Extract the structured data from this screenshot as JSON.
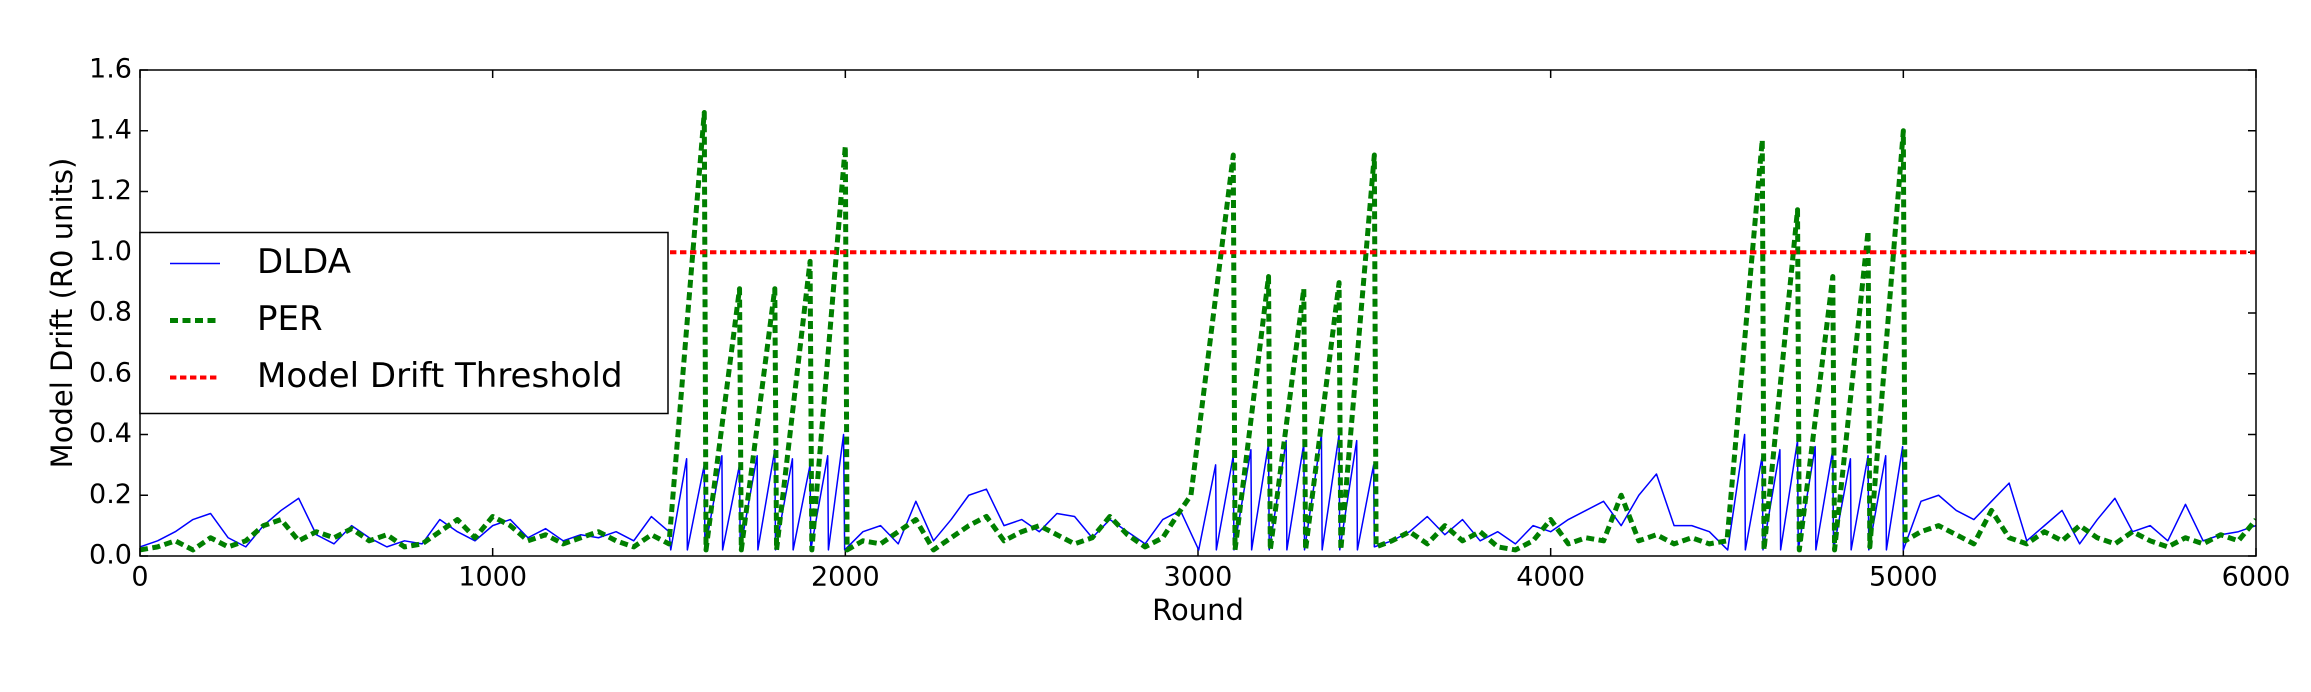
{
  "chart_data": {
    "type": "line",
    "xlabel": "Round",
    "ylabel": "Model Drift (R0 units)",
    "xlim": [
      0,
      6000
    ],
    "xticks": [
      0,
      1000,
      2000,
      3000,
      4000,
      5000,
      6000
    ],
    "ylim": [
      0,
      1.6
    ],
    "yticks": [
      {
        "value": 0,
        "label": "0.0"
      },
      0.2,
      0.4,
      0.6,
      0.8,
      {
        "value": 1,
        "label": "1.0"
      },
      1.2,
      1.4,
      1.6
    ],
    "grid": false,
    "legend": "center left",
    "series": [
      {
        "name": "DLDA",
        "color": "#0000ff",
        "dash": "solid",
        "width": 1.5,
        "x": [
          0,
          50,
          100,
          150,
          200,
          250,
          300,
          350,
          400,
          450,
          500,
          550,
          600,
          650,
          700,
          750,
          800,
          850,
          900,
          950,
          1000,
          1050,
          1100,
          1150,
          1200,
          1250,
          1300,
          1350,
          1400,
          1450,
          1500,
          1505,
          1550,
          1552,
          1600,
          1602,
          1650,
          1652,
          1700,
          1702,
          1750,
          1752,
          1800,
          1802,
          1850,
          1852,
          1900,
          1902,
          1950,
          1952,
          1995,
          1998,
          2050,
          2100,
          2150,
          2200,
          2250,
          2300,
          2350,
          2400,
          2450,
          2500,
          2550,
          2600,
          2650,
          2700,
          2750,
          2800,
          2850,
          2900,
          2950,
          3002,
          3050,
          3052,
          3100,
          3102,
          3150,
          3152,
          3200,
          3202,
          3250,
          3252,
          3300,
          3302,
          3350,
          3352,
          3400,
          3402,
          3450,
          3452,
          3498,
          3500,
          3550,
          3600,
          3650,
          3700,
          3750,
          3800,
          3850,
          3900,
          3950,
          4000,
          4050,
          4100,
          4150,
          4200,
          4250,
          4300,
          4350,
          4400,
          4450,
          4502,
          4550,
          4552,
          4600,
          4602,
          4650,
          4652,
          4700,
          4702,
          4750,
          4752,
          4800,
          4802,
          4850,
          4852,
          4900,
          4902,
          4950,
          4952,
          4998,
          5000,
          5050,
          5100,
          5150,
          5200,
          5250,
          5300,
          5350,
          5400,
          5450,
          5500,
          5550,
          5600,
          5650,
          5700,
          5750,
          5800,
          5850,
          5900,
          5950,
          6000
        ],
        "values": [
          0.03,
          0.05,
          0.08,
          0.12,
          0.14,
          0.06,
          0.03,
          0.1,
          0.15,
          0.19,
          0.07,
          0.04,
          0.1,
          0.06,
          0.03,
          0.05,
          0.04,
          0.12,
          0.08,
          0.05,
          0.1,
          0.12,
          0.06,
          0.09,
          0.05,
          0.07,
          0.06,
          0.08,
          0.05,
          0.13,
          0.08,
          0.02,
          0.32,
          0.02,
          0.3,
          0.02,
          0.33,
          0.02,
          0.3,
          0.02,
          0.33,
          0.02,
          0.35,
          0.02,
          0.32,
          0.02,
          0.3,
          0.02,
          0.33,
          0.02,
          0.4,
          0.02,
          0.08,
          0.1,
          0.04,
          0.18,
          0.05,
          0.12,
          0.2,
          0.22,
          0.1,
          0.12,
          0.08,
          0.14,
          0.13,
          0.06,
          0.12,
          0.08,
          0.04,
          0.12,
          0.15,
          0.02,
          0.3,
          0.02,
          0.33,
          0.02,
          0.35,
          0.02,
          0.37,
          0.02,
          0.38,
          0.02,
          0.37,
          0.02,
          0.4,
          0.02,
          0.4,
          0.02,
          0.38,
          0.02,
          0.3,
          0.03,
          0.05,
          0.08,
          0.13,
          0.07,
          0.12,
          0.05,
          0.08,
          0.04,
          0.1,
          0.08,
          0.12,
          0.15,
          0.18,
          0.1,
          0.2,
          0.27,
          0.1,
          0.1,
          0.08,
          0.02,
          0.4,
          0.02,
          0.33,
          0.02,
          0.35,
          0.02,
          0.38,
          0.02,
          0.36,
          0.02,
          0.35,
          0.02,
          0.32,
          0.02,
          0.33,
          0.02,
          0.33,
          0.02,
          0.36,
          0.02,
          0.18,
          0.2,
          0.15,
          0.12,
          0.18,
          0.24,
          0.05,
          0.1,
          0.15,
          0.04,
          0.12,
          0.19,
          0.08,
          0.1,
          0.05,
          0.17,
          0.05,
          0.07,
          0.08,
          0.1
        ]
      },
      {
        "name": "PER",
        "color": "#007f00",
        "dash": "dashed",
        "width": 5,
        "x": [
          0,
          50,
          100,
          150,
          200,
          250,
          300,
          350,
          400,
          450,
          500,
          550,
          600,
          650,
          700,
          750,
          800,
          850,
          900,
          950,
          1000,
          1050,
          1100,
          1150,
          1200,
          1250,
          1300,
          1350,
          1400,
          1450,
          1500,
          1600,
          1605,
          1700,
          1705,
          1800,
          1805,
          1900,
          1905,
          2000,
          2005,
          2050,
          2100,
          2150,
          2200,
          2250,
          2300,
          2350,
          2400,
          2450,
          2500,
          2550,
          2600,
          2650,
          2700,
          2750,
          2800,
          2850,
          2900,
          2950,
          2980,
          3100,
          3105,
          3200,
          3205,
          3300,
          3305,
          3400,
          3405,
          3500,
          3505,
          3550,
          3600,
          3650,
          3700,
          3750,
          3800,
          3850,
          3900,
          3950,
          4000,
          4050,
          4100,
          4150,
          4200,
          4250,
          4300,
          4350,
          4400,
          4450,
          4500,
          4600,
          4605,
          4700,
          4705,
          4800,
          4805,
          4900,
          4905,
          5000,
          5005,
          5050,
          5100,
          5150,
          5200,
          5250,
          5300,
          5350,
          5400,
          5450,
          5500,
          5550,
          5600,
          5650,
          5700,
          5750,
          5800,
          5850,
          5900,
          5950,
          6000
        ],
        "values": [
          0.02,
          0.03,
          0.05,
          0.02,
          0.06,
          0.03,
          0.05,
          0.1,
          0.12,
          0.05,
          0.08,
          0.06,
          0.09,
          0.05,
          0.07,
          0.03,
          0.04,
          0.08,
          0.12,
          0.06,
          0.13,
          0.1,
          0.05,
          0.07,
          0.04,
          0.06,
          0.08,
          0.05,
          0.03,
          0.07,
          0.04,
          1.46,
          0.02,
          0.88,
          0.02,
          0.88,
          0.02,
          0.97,
          0.02,
          1.35,
          0.02,
          0.05,
          0.04,
          0.08,
          0.12,
          0.02,
          0.06,
          0.1,
          0.13,
          0.05,
          0.08,
          0.1,
          0.07,
          0.04,
          0.06,
          0.13,
          0.07,
          0.03,
          0.06,
          0.15,
          0.2,
          1.32,
          0.02,
          0.92,
          0.02,
          0.88,
          0.02,
          0.9,
          0.02,
          1.32,
          0.03,
          0.05,
          0.08,
          0.04,
          0.1,
          0.05,
          0.08,
          0.03,
          0.02,
          0.05,
          0.12,
          0.04,
          0.06,
          0.05,
          0.2,
          0.05,
          0.07,
          0.04,
          0.06,
          0.04,
          0.05,
          1.37,
          0.02,
          1.14,
          0.02,
          0.92,
          0.02,
          1.07,
          0.03,
          1.4,
          0.05,
          0.08,
          0.1,
          0.07,
          0.04,
          0.15,
          0.06,
          0.04,
          0.08,
          0.05,
          0.1,
          0.06,
          0.04,
          0.08,
          0.05,
          0.03,
          0.06,
          0.04,
          0.07,
          0.05,
          0.12
        ]
      },
      {
        "name": "Model Drift Threshold",
        "color": "#ff0000",
        "dash": "dashed",
        "width": 4,
        "x": [
          0,
          6000
        ],
        "values": [
          1,
          1
        ]
      }
    ]
  }
}
